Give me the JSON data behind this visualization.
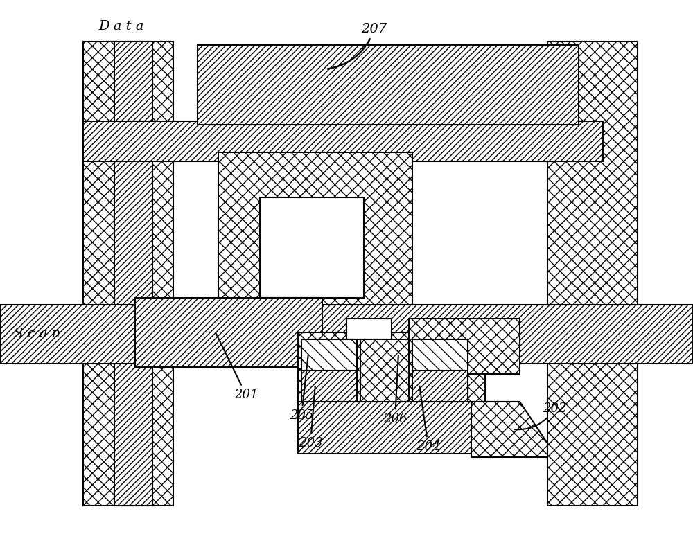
{
  "figsize": [
    10.0,
    7.84
  ],
  "bg_color": "#ffffff",
  "black": "#000000",
  "white": "#ffffff",
  "lw": 1.5
}
